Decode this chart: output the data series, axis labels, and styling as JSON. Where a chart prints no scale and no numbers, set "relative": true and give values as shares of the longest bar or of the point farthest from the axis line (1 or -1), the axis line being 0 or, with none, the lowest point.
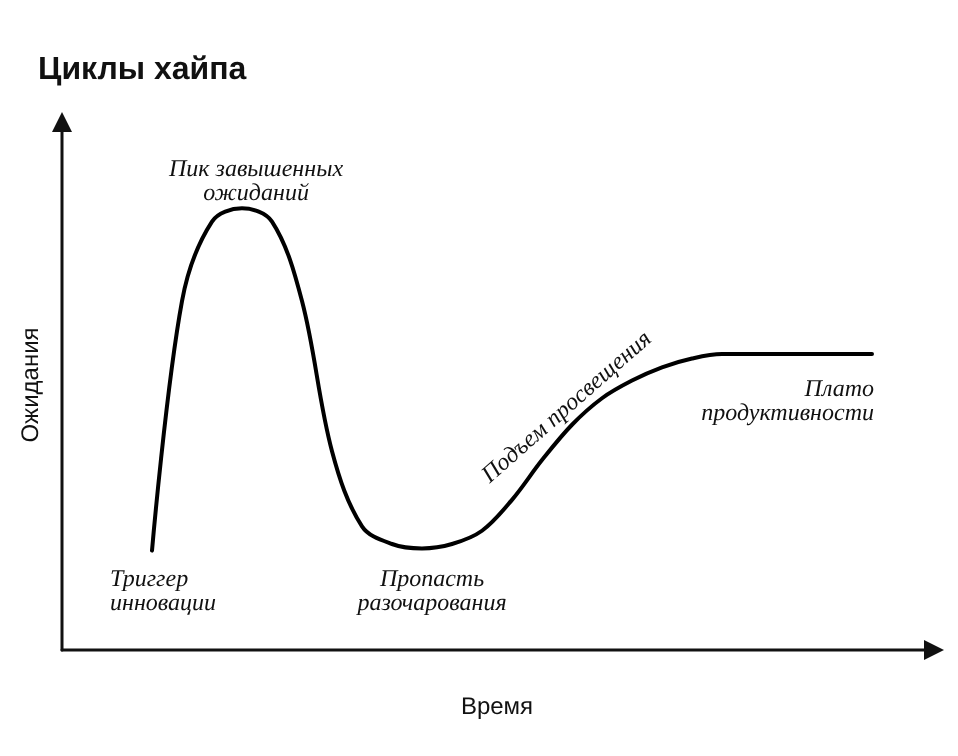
{
  "chart_data": {
    "type": "line",
    "title": "Циклы хайпа",
    "xlabel": "Время",
    "ylabel": "Ожидания",
    "relative": true,
    "marker": "none",
    "line_style": "solid",
    "annotations": [
      "Пик завышенных ожиданий",
      "Триггер инновации",
      "Пропасть разочарования",
      "Подъем просвещения",
      "Плато продуктивности"
    ],
    "categories": [
      null,
      null,
      null,
      null,
      null,
      null,
      null,
      null,
      null,
      null,
      null,
      null,
      null,
      null,
      null,
      null,
      null,
      null,
      null,
      null,
      null,
      null,
      null,
      null,
      null,
      null,
      null,
      null,
      null,
      null
    ],
    "series": [
      {
        "color": "#000000",
        "values": [
          null,
          null,
          null,
          0.225,
          0.79,
          0.97,
          1.0,
          0.97,
          0.79,
          0.45,
          0.28,
          0.24,
          0.23,
          0.24,
          0.27,
          0.34,
          0.43,
          0.51,
          0.57,
          0.61,
          0.64,
          0.66,
          0.67,
          0.67,
          0.67,
          0.67,
          0.67,
          0.67,
          null,
          null
        ]
      }
    ]
  }
}
